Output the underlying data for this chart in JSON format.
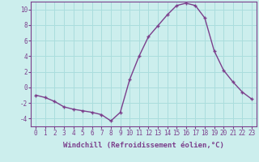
{
  "x": [
    0,
    1,
    2,
    3,
    4,
    5,
    6,
    7,
    8,
    9,
    10,
    11,
    12,
    13,
    14,
    15,
    16,
    17,
    18,
    19,
    20,
    21,
    22,
    23
  ],
  "y": [
    -1.0,
    -1.3,
    -1.8,
    -2.5,
    -2.8,
    -3.0,
    -3.2,
    -3.5,
    -4.3,
    -3.2,
    1.0,
    4.0,
    6.5,
    7.9,
    9.3,
    10.5,
    10.8,
    10.5,
    8.9,
    4.7,
    2.2,
    0.7,
    -0.6,
    -1.5
  ],
  "line_color": "#7b3f8c",
  "marker": "+",
  "markersize": 3.5,
  "linewidth": 1.0,
  "bg_color": "#cceeed",
  "grid_color": "#aadddd",
  "xlabel": "Windchill (Refroidissement éolien,°C)",
  "xlabel_fontsize": 6.5,
  "tick_fontsize": 5.5,
  "ylim": [
    -5,
    11
  ],
  "xlim": [
    -0.5,
    23.5
  ],
  "yticks": [
    -4,
    -2,
    0,
    2,
    4,
    6,
    8,
    10
  ],
  "xticks": [
    0,
    1,
    2,
    3,
    4,
    5,
    6,
    7,
    8,
    9,
    10,
    11,
    12,
    13,
    14,
    15,
    16,
    17,
    18,
    19,
    20,
    21,
    22,
    23
  ],
  "xtick_labels": [
    "0",
    "1",
    "2",
    "3",
    "4",
    "5",
    "6",
    "7",
    "8",
    "9",
    "10",
    "11",
    "12",
    "13",
    "14",
    "15",
    "16",
    "17",
    "18",
    "19",
    "20",
    "21",
    "22",
    "23"
  ]
}
